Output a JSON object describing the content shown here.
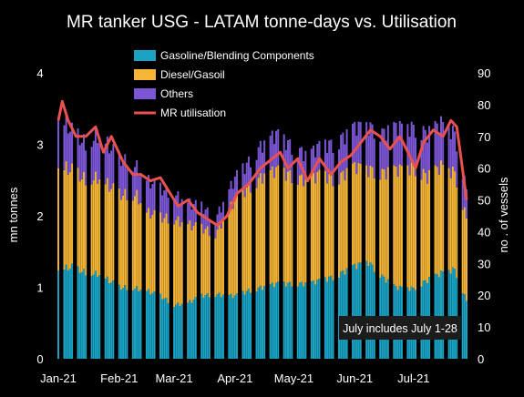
{
  "chart_data": {
    "type": "bar",
    "title": "MR tanker USG - LATAM tonne-days vs. Utilisation",
    "ylabel": "mn tonnes",
    "y2label": "no . of vessels",
    "ylim": [
      0,
      4
    ],
    "y2lim": [
      0,
      90
    ],
    "y_ticks": [
      "0",
      "1",
      "2",
      "3",
      "4"
    ],
    "y2_ticks": [
      "0",
      "10",
      "20",
      "30",
      "40",
      "50",
      "60",
      "70",
      "80",
      "90"
    ],
    "x_ticks": [
      "Jan-21",
      "Feb-21",
      "Mar-21",
      "Apr-21",
      "May-21",
      "Jun-21",
      "Jul-21"
    ],
    "x_range": [
      "2021-01-01",
      "2021-07-28"
    ],
    "stacked": true,
    "legend_position": "top-left",
    "note": "July includes July 1-28",
    "colors": {
      "background": "#000000",
      "gasoline": "#1aa3c4",
      "diesel": "#f5b537",
      "others": "#7b57d6",
      "utilisation": "#e8514f",
      "note_box": "#1c1c1c"
    },
    "series": [
      {
        "name": "Gasoline/Blending Components",
        "kind": "bar",
        "points": [
          [
            "2021-01-01",
            1.25
          ],
          [
            "2021-01-08",
            1.28
          ],
          [
            "2021-01-15",
            1.2
          ],
          [
            "2021-01-22",
            1.18
          ],
          [
            "2021-02-01",
            1.0
          ],
          [
            "2021-02-10",
            0.98
          ],
          [
            "2021-02-15",
            0.95
          ],
          [
            "2021-02-22",
            0.88
          ],
          [
            "2021-03-01",
            0.75
          ],
          [
            "2021-03-08",
            0.78
          ],
          [
            "2021-03-15",
            0.88
          ],
          [
            "2021-03-22",
            0.9
          ],
          [
            "2021-04-01",
            0.88
          ],
          [
            "2021-04-08",
            0.95
          ],
          [
            "2021-04-15",
            1.0
          ],
          [
            "2021-04-22",
            1.05
          ],
          [
            "2021-05-01",
            1.05
          ],
          [
            "2021-05-08",
            1.05
          ],
          [
            "2021-05-15",
            1.1
          ],
          [
            "2021-05-22",
            1.15
          ],
          [
            "2021-06-01",
            1.3
          ],
          [
            "2021-06-08",
            1.35
          ],
          [
            "2021-06-15",
            1.15
          ],
          [
            "2021-06-22",
            1.0
          ],
          [
            "2021-07-01",
            0.98
          ],
          [
            "2021-07-08",
            1.1
          ],
          [
            "2021-07-15",
            1.2
          ],
          [
            "2021-07-22",
            1.25
          ],
          [
            "2021-07-28",
            0.8
          ]
        ]
      },
      {
        "name": "Diesel/Gasoil",
        "kind": "bar",
        "points": [
          [
            "2021-01-01",
            1.45
          ],
          [
            "2021-01-08",
            1.35
          ],
          [
            "2021-01-15",
            1.3
          ],
          [
            "2021-01-22",
            1.35
          ],
          [
            "2021-02-01",
            1.3
          ],
          [
            "2021-02-10",
            1.3
          ],
          [
            "2021-02-15",
            1.1
          ],
          [
            "2021-02-22",
            1.1
          ],
          [
            "2021-03-01",
            1.2
          ],
          [
            "2021-03-08",
            1.1
          ],
          [
            "2021-03-15",
            0.95
          ],
          [
            "2021-03-22",
            0.85
          ],
          [
            "2021-04-01",
            1.35
          ],
          [
            "2021-04-08",
            1.45
          ],
          [
            "2021-04-15",
            1.55
          ],
          [
            "2021-04-22",
            1.6
          ],
          [
            "2021-05-01",
            1.5
          ],
          [
            "2021-05-08",
            1.45
          ],
          [
            "2021-05-15",
            1.5
          ],
          [
            "2021-05-22",
            1.35
          ],
          [
            "2021-06-01",
            1.4
          ],
          [
            "2021-06-08",
            1.3
          ],
          [
            "2021-06-15",
            1.45
          ],
          [
            "2021-06-22",
            1.65
          ],
          [
            "2021-07-01",
            1.7
          ],
          [
            "2021-07-08",
            1.45
          ],
          [
            "2021-07-15",
            1.5
          ],
          [
            "2021-07-22",
            1.35
          ],
          [
            "2021-07-28",
            1.15
          ]
        ]
      },
      {
        "name": "Others",
        "kind": "bar",
        "points": [
          [
            "2021-01-01",
            0.7
          ],
          [
            "2021-01-08",
            0.55
          ],
          [
            "2021-01-15",
            0.5
          ],
          [
            "2021-01-22",
            0.6
          ],
          [
            "2021-02-01",
            0.5
          ],
          [
            "2021-02-10",
            0.4
          ],
          [
            "2021-02-15",
            0.45
          ],
          [
            "2021-02-22",
            0.4
          ],
          [
            "2021-03-01",
            0.35
          ],
          [
            "2021-03-08",
            0.3
          ],
          [
            "2021-03-15",
            0.3
          ],
          [
            "2021-03-22",
            0.2
          ],
          [
            "2021-04-01",
            0.3
          ],
          [
            "2021-04-08",
            0.35
          ],
          [
            "2021-04-15",
            0.45
          ],
          [
            "2021-04-22",
            0.5
          ],
          [
            "2021-05-01",
            0.4
          ],
          [
            "2021-05-08",
            0.35
          ],
          [
            "2021-05-15",
            0.4
          ],
          [
            "2021-05-22",
            0.5
          ],
          [
            "2021-06-01",
            0.55
          ],
          [
            "2021-06-08",
            0.6
          ],
          [
            "2021-06-15",
            0.55
          ],
          [
            "2021-06-22",
            0.6
          ],
          [
            "2021-07-01",
            0.55
          ],
          [
            "2021-07-08",
            0.6
          ],
          [
            "2021-07-15",
            0.6
          ],
          [
            "2021-07-22",
            0.55
          ],
          [
            "2021-07-28",
            0.4
          ]
        ]
      },
      {
        "name": "MR utilisation",
        "kind": "line",
        "axis": "right",
        "points": [
          [
            "2021-01-01",
            75
          ],
          [
            "2021-01-03",
            81
          ],
          [
            "2021-01-06",
            75
          ],
          [
            "2021-01-10",
            70
          ],
          [
            "2021-01-15",
            70
          ],
          [
            "2021-01-20",
            73
          ],
          [
            "2021-01-24",
            65
          ],
          [
            "2021-01-28",
            70
          ],
          [
            "2021-02-03",
            62
          ],
          [
            "2021-02-08",
            58
          ],
          [
            "2021-02-12",
            58
          ],
          [
            "2021-02-17",
            56
          ],
          [
            "2021-02-22",
            57
          ],
          [
            "2021-02-27",
            52
          ],
          [
            "2021-03-03",
            48
          ],
          [
            "2021-03-08",
            50
          ],
          [
            "2021-03-13",
            46
          ],
          [
            "2021-03-18",
            44
          ],
          [
            "2021-03-23",
            42
          ],
          [
            "2021-03-28",
            45
          ],
          [
            "2021-04-02",
            52
          ],
          [
            "2021-04-08",
            55
          ],
          [
            "2021-04-14",
            60
          ],
          [
            "2021-04-20",
            63
          ],
          [
            "2021-04-24",
            65
          ],
          [
            "2021-04-28",
            60
          ],
          [
            "2021-05-03",
            63
          ],
          [
            "2021-05-08",
            56
          ],
          [
            "2021-05-14",
            63
          ],
          [
            "2021-05-20",
            58
          ],
          [
            "2021-05-25",
            62
          ],
          [
            "2021-05-30",
            64
          ],
          [
            "2021-06-04",
            68
          ],
          [
            "2021-06-09",
            72
          ],
          [
            "2021-06-14",
            70
          ],
          [
            "2021-06-19",
            66
          ],
          [
            "2021-06-24",
            70
          ],
          [
            "2021-06-29",
            64
          ],
          [
            "2021-07-02",
            60
          ],
          [
            "2021-07-06",
            68
          ],
          [
            "2021-07-11",
            72
          ],
          [
            "2021-07-16",
            70
          ],
          [
            "2021-07-20",
            75
          ],
          [
            "2021-07-23",
            73
          ],
          [
            "2021-07-25",
            64
          ],
          [
            "2021-07-28",
            50
          ]
        ]
      }
    ]
  }
}
